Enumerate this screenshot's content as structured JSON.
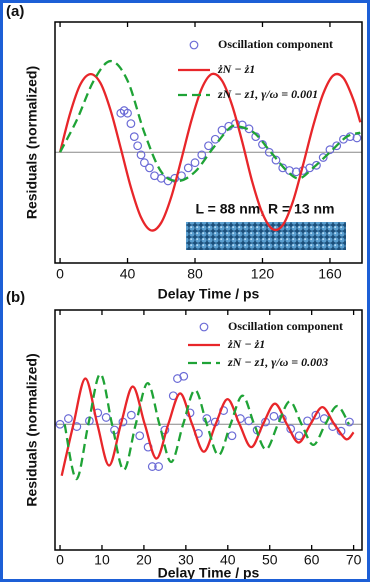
{
  "chart_data": [
    {
      "type": "line",
      "panel_label": "(a)",
      "xlabel": "Delay Time / ps",
      "ylabel": "Residuals (normalized)",
      "xlim": [
        -3,
        179
      ],
      "ylim": [
        -0.85,
        1.0
      ],
      "xticks": [
        0,
        40,
        80,
        120,
        160
      ],
      "hline": 0,
      "legend": "upper right",
      "annotation": "L = 88 nm, R = 13 nm",
      "series": [
        {
          "name": "Oscillation component",
          "style": "markers",
          "color": "#6b6bd6",
          "x": [
            36,
            38,
            40,
            42,
            44,
            46,
            48,
            50,
            53,
            56,
            60,
            64,
            68,
            72,
            76,
            80,
            84,
            88,
            92,
            96,
            100,
            104,
            108,
            112,
            116,
            120,
            124,
            128,
            132,
            136,
            140,
            144,
            148,
            152,
            156,
            160,
            164,
            168,
            172,
            176
          ],
          "values": [
            0.3,
            0.32,
            0.3,
            0.22,
            0.12,
            0.05,
            -0.02,
            -0.08,
            -0.12,
            -0.18,
            -0.2,
            -0.22,
            -0.2,
            -0.18,
            -0.12,
            -0.08,
            -0.02,
            0.05,
            0.1,
            0.17,
            0.2,
            0.22,
            0.21,
            0.18,
            0.12,
            0.06,
            0,
            -0.06,
            -0.12,
            -0.14,
            -0.15,
            -0.14,
            -0.12,
            -0.1,
            -0.04,
            0.02,
            0.05,
            0.1,
            0.12,
            0.11
          ]
        },
        {
          "name": "żN − ż1",
          "style": "solid",
          "color": "#e8262a",
          "x": [
            0,
            6,
            12,
            18,
            24,
            30,
            36,
            42,
            48,
            54,
            60,
            66,
            72,
            78,
            84,
            90,
            96,
            102,
            108,
            114,
            120,
            126,
            132,
            138,
            144,
            150,
            156,
            162,
            168,
            174,
            178
          ],
          "values": [
            0,
            0.3,
            0.52,
            0.6,
            0.53,
            0.32,
            0.03,
            -0.27,
            -0.5,
            -0.6,
            -0.54,
            -0.34,
            -0.05,
            0.25,
            0.49,
            0.6,
            0.55,
            0.36,
            0.08,
            -0.23,
            -0.47,
            -0.59,
            -0.56,
            -0.38,
            -0.1,
            0.2,
            0.45,
            0.59,
            0.57,
            0.4,
            0.23
          ]
        },
        {
          "name": "zN − z1, γ/ω = 0.001",
          "style": "dashed",
          "color": "#1fa336",
          "x": [
            0,
            10,
            20,
            30,
            40,
            50,
            60,
            70,
            80,
            90,
            100,
            105,
            115,
            125,
            135,
            142,
            150,
            160,
            170,
            178
          ],
          "values": [
            0,
            0.25,
            0.55,
            0.7,
            0.55,
            0.15,
            -0.15,
            -0.22,
            -0.15,
            0.02,
            0.18,
            0.2,
            0.15,
            0,
            -0.15,
            -0.2,
            -0.12,
            0,
            0.12,
            0.15
          ]
        }
      ]
    },
    {
      "type": "line",
      "panel_label": "(b)",
      "xlabel": "Delay Time / ps",
      "ylabel": "Residuals (normalized)",
      "xlim": [
        -1.2,
        72
      ],
      "ylim": [
        -1.1,
        1.0
      ],
      "xticks": [
        0,
        10,
        20,
        30,
        40,
        50,
        60,
        70
      ],
      "hline": 0,
      "legend": "upper right",
      "series": [
        {
          "name": "Oscillation component",
          "style": "markers",
          "color": "#6b6bd6",
          "x": [
            0,
            2,
            4,
            7,
            9,
            11,
            13,
            15,
            17,
            19,
            21,
            22,
            23.5,
            25,
            27,
            28,
            29.5,
            31,
            33,
            35,
            37,
            39,
            41,
            43,
            45,
            47,
            49,
            51,
            53,
            55,
            57,
            59,
            61,
            63,
            65,
            67,
            69
          ],
          "values": [
            0,
            0.05,
            -0.02,
            0.03,
            0.1,
            0.06,
            -0.05,
            0.02,
            0.08,
            -0.1,
            -0.2,
            -0.37,
            -0.37,
            -0.05,
            0.25,
            0.4,
            0.42,
            0.1,
            -0.08,
            0.05,
            0.02,
            0.12,
            -0.1,
            0.05,
            0.03,
            -0.05,
            0.02,
            0.07,
            0.05,
            -0.04,
            -0.1,
            0.03,
            0.08,
            0.05,
            -0.02,
            -0.06,
            0.02
          ]
        },
        {
          "name": "żN − ż1",
          "style": "solid",
          "color": "#e8262a",
          "x": [
            0.4,
            3.2,
            6.05,
            8.9,
            11.7,
            14.5,
            17.35,
            20.2,
            23.0,
            25.8,
            28.65,
            31.5,
            34.3,
            37.1,
            39.95,
            42.8,
            45.6,
            48.4,
            51.25,
            54.1,
            56.9,
            59.7,
            62.55,
            65.4,
            68.2,
            70
          ],
          "values": [
            -0.45,
            0,
            0.4,
            0,
            -0.36,
            0,
            0.33,
            0,
            -0.3,
            0,
            0.27,
            0,
            -0.24,
            0,
            0.22,
            0,
            -0.2,
            0,
            0.18,
            0,
            -0.16,
            0,
            0.15,
            0,
            -0.13,
            -0.07
          ]
        },
        {
          "name": "zN − z1, γ/ω = 0.003",
          "style": "dashed",
          "color": "#1fa336",
          "x": [
            1.1,
            3.9,
            6.75,
            9.6,
            12.4,
            15.2,
            18.05,
            20.9,
            23.7,
            26.5,
            29.35,
            32.2,
            35.0,
            37.8,
            40.65,
            43.5,
            46.3,
            49.1,
            51.95,
            54.8,
            57.6,
            60.4,
            63.25,
            66.1,
            68.9
          ],
          "values": [
            0,
            -0.48,
            0,
            0.44,
            0,
            -0.4,
            0,
            0.36,
            0,
            -0.33,
            0,
            0.3,
            0,
            -0.27,
            0,
            0.25,
            0,
            -0.22,
            0,
            0.2,
            0,
            -0.18,
            0,
            0.16,
            0
          ]
        }
      ]
    }
  ]
}
